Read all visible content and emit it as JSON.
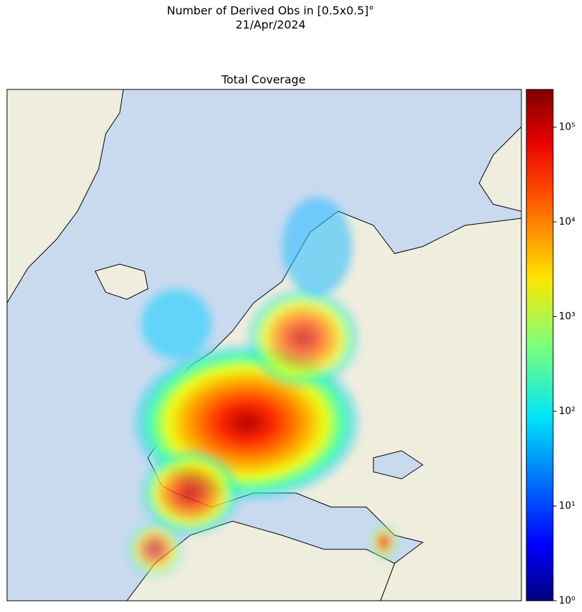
{
  "title": "Number of Derived Obs in [0.5x0.5]°",
  "date": "21/Apr/2024",
  "panel_title": "Total Coverage",
  "colorbar": {
    "scale": "log",
    "lim": [
      1,
      250000
    ],
    "ticks": [
      {
        "value": 1,
        "label": "10⁰"
      },
      {
        "value": 10,
        "label": "10¹"
      },
      {
        "value": 100,
        "label": "10²"
      },
      {
        "value": 1000,
        "label": "10³"
      },
      {
        "value": 10000,
        "label": "10⁴"
      },
      {
        "value": 100000,
        "label": "10⁵"
      }
    ]
  }
}
